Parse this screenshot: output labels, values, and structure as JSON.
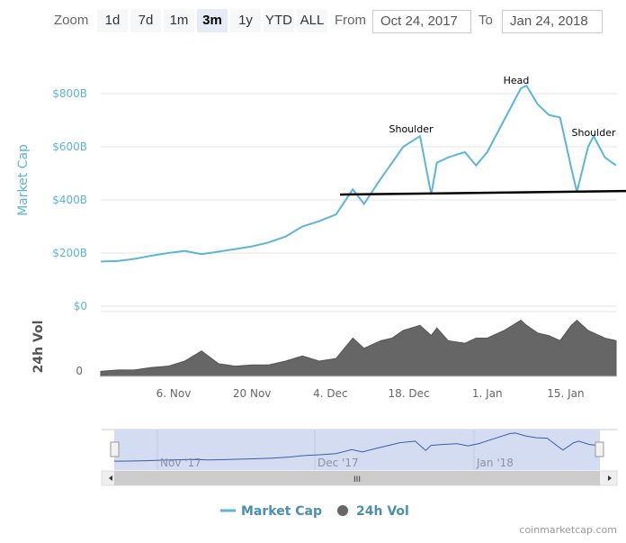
{
  "toolbar": {
    "zoom_label": "Zoom",
    "buttons": [
      "1d",
      "7d",
      "1m",
      "3m",
      "1y",
      "YTD",
      "ALL"
    ],
    "selected": "3m",
    "from_label": "From",
    "from_value": "Oct 24, 2017",
    "to_label": "To",
    "to_value": "Jan 24, 2018"
  },
  "chart_data": {
    "type": "line",
    "xlabel": "",
    "ylabel": "Market Cap",
    "y2label": "24h Vol",
    "ylim": [
      0,
      850
    ],
    "yticks": [
      "$0",
      "$200B",
      "$400B",
      "$600B",
      "$800B"
    ],
    "vol_tick": "0",
    "xticks": [
      "6. Nov",
      "20 Nov",
      "4. Dec",
      "18. Dec",
      "1. Jan",
      "15. Jan"
    ],
    "x_range": [
      "2017-10-24",
      "2018-01-24"
    ],
    "series": [
      {
        "name": "Market Cap",
        "unit": "$B",
        "color": "#5bb5d8",
        "x": [
          "2017-10-24",
          "2017-10-27",
          "2017-10-30",
          "2017-11-02",
          "2017-11-05",
          "2017-11-08",
          "2017-11-11",
          "2017-11-14",
          "2017-11-17",
          "2017-11-20",
          "2017-11-23",
          "2017-11-26",
          "2017-11-29",
          "2017-12-02",
          "2017-12-05",
          "2017-12-08",
          "2017-12-10",
          "2017-12-13",
          "2017-12-15",
          "2017-12-17",
          "2017-12-20",
          "2017-12-22",
          "2017-12-23",
          "2017-12-25",
          "2017-12-28",
          "2017-12-30",
          "2018-01-01",
          "2018-01-04",
          "2018-01-07",
          "2018-01-08",
          "2018-01-10",
          "2018-01-12",
          "2018-01-14",
          "2018-01-16",
          "2018-01-17",
          "2018-01-19",
          "2018-01-20",
          "2018-01-22",
          "2018-01-24"
        ],
        "values": [
          168,
          170,
          178,
          190,
          200,
          208,
          196,
          205,
          215,
          225,
          240,
          262,
          300,
          320,
          345,
          440,
          385,
          480,
          540,
          600,
          640,
          420,
          540,
          560,
          580,
          530,
          580,
          700,
          820,
          830,
          760,
          720,
          710,
          520,
          430,
          600,
          640,
          560,
          530
        ]
      },
      {
        "name": "24h Vol",
        "unit": "$B",
        "color": "#555555",
        "x": [
          "2017-10-24",
          "2017-10-27",
          "2017-10-30",
          "2017-11-02",
          "2017-11-05",
          "2017-11-08",
          "2017-11-11",
          "2017-11-14",
          "2017-11-17",
          "2017-11-20",
          "2017-11-23",
          "2017-11-26",
          "2017-11-29",
          "2017-12-02",
          "2017-12-05",
          "2017-12-08",
          "2017-12-10",
          "2017-12-13",
          "2017-12-15",
          "2017-12-17",
          "2017-12-20",
          "2017-12-22",
          "2017-12-23",
          "2017-12-25",
          "2017-12-28",
          "2017-12-30",
          "2018-01-01",
          "2018-01-04",
          "2018-01-07",
          "2018-01-08",
          "2018-01-10",
          "2018-01-12",
          "2018-01-14",
          "2018-01-16",
          "2018-01-17",
          "2018-01-19",
          "2018-01-20",
          "2018-01-22",
          "2018-01-24"
        ],
        "values": [
          4,
          5,
          5,
          7,
          8,
          12,
          20,
          10,
          8,
          9,
          9,
          12,
          16,
          12,
          14,
          30,
          22,
          28,
          30,
          36,
          40,
          32,
          38,
          28,
          26,
          30,
          30,
          36,
          44,
          40,
          34,
          32,
          28,
          40,
          44,
          36,
          34,
          30,
          28
        ]
      }
    ],
    "annotations": [
      "Shoulder",
      "Head",
      "Shoulder"
    ],
    "neckline_value": 420,
    "legend": {
      "position": "bottom",
      "items": [
        "Market Cap",
        "24h Vol"
      ]
    },
    "navigator": {
      "labels": [
        "Nov '17",
        "Dec '17",
        "Jan '18"
      ]
    }
  },
  "credit": "coinmarketcap.com"
}
